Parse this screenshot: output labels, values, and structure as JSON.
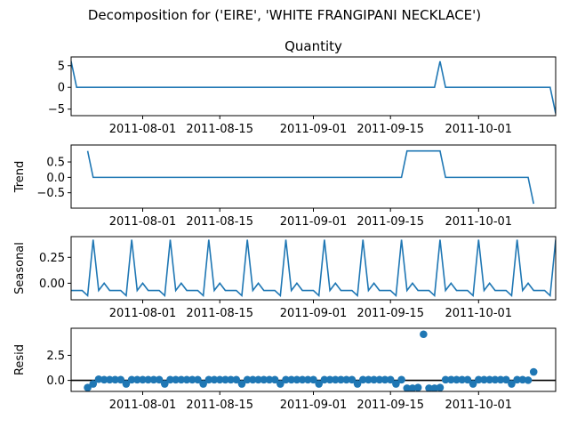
{
  "figure": {
    "suptitle": "Decomposition for ('EIRE', 'WHITE FRANGIPANI NECKLACE')",
    "series_color": "#1f77b4"
  },
  "chart_data": [
    {
      "type": "line",
      "title": "Quantity",
      "ylabel": "",
      "xlim": [
        "2011-07-19",
        "2011-10-15"
      ],
      "ylim": [
        -6.5,
        7
      ],
      "yticks": [
        5,
        0,
        -5
      ],
      "xticks": [
        "2011-08-01",
        "2011-08-15",
        "2011-09-01",
        "2011-09-15",
        "2011-10-01"
      ],
      "points": [
        [
          "2011-07-19",
          6
        ],
        [
          "2011-07-20",
          0
        ],
        [
          "2011-09-23",
          0
        ],
        [
          "2011-09-24",
          6
        ],
        [
          "2011-09-25",
          0
        ],
        [
          "2011-10-14",
          0
        ],
        [
          "2011-10-15",
          -6
        ]
      ]
    },
    {
      "type": "line",
      "title": "",
      "ylabel": "Trend",
      "xlim": [
        "2011-07-19",
        "2011-10-15"
      ],
      "ylim": [
        -1.0,
        1.05
      ],
      "yticks": [
        0.5,
        0.0,
        -0.5
      ],
      "xticks": [
        "2011-08-01",
        "2011-08-15",
        "2011-09-01",
        "2011-09-15",
        "2011-10-01"
      ],
      "points": [
        [
          "2011-07-22",
          0.857
        ],
        [
          "2011-07-23",
          0
        ],
        [
          "2011-09-17",
          0
        ],
        [
          "2011-09-18",
          0.857
        ],
        [
          "2011-09-24",
          0.857
        ],
        [
          "2011-09-25",
          0
        ],
        [
          "2011-10-10",
          0
        ],
        [
          "2011-10-11",
          -0.857
        ]
      ]
    },
    {
      "type": "line",
      "title": "",
      "ylabel": "Seasonal",
      "xlim": [
        "2011-07-19",
        "2011-10-15"
      ],
      "ylim": [
        -0.16,
        0.45
      ],
      "yticks": [
        0.25,
        0.0
      ],
      "xticks": [
        "2011-08-01",
        "2011-08-15",
        "2011-09-01",
        "2011-09-15",
        "2011-10-01"
      ],
      "weekly_pattern": [
        0.42,
        -0.07,
        0.0,
        -0.07,
        -0.07,
        -0.07,
        -0.12
      ],
      "pattern_start": "2011-07-23",
      "lead_points": [
        [
          "2011-07-19",
          -0.07
        ],
        [
          "2011-07-20",
          -0.07
        ],
        [
          "2011-07-21",
          -0.07
        ],
        [
          "2011-07-22",
          -0.12
        ]
      ]
    },
    {
      "type": "scatter",
      "title": "",
      "ylabel": "Resid",
      "xlim": [
        "2011-07-19",
        "2011-10-15"
      ],
      "ylim": [
        -1.1,
        5.2
      ],
      "yticks": [
        2.5,
        0.0
      ],
      "xticks": [
        "2011-08-01",
        "2011-08-15",
        "2011-09-01",
        "2011-09-15",
        "2011-10-01"
      ],
      "baseline": 0,
      "range_start": "2011-07-22",
      "range_end": "2011-10-11",
      "default_value": 0.07,
      "overrides": {
        "2011-07-22": -0.72,
        "2011-07-23": -0.35,
        "2011-07-24": 0.12,
        "2011-07-29": -0.35,
        "2011-08-05": -0.35,
        "2011-08-12": -0.35,
        "2011-08-19": -0.35,
        "2011-08-26": -0.35,
        "2011-09-02": -0.35,
        "2011-09-09": -0.35,
        "2011-09-16": -0.35,
        "2011-09-18": -0.78,
        "2011-09-19": -0.78,
        "2011-09-20": -0.72,
        "2011-09-21": 4.6,
        "2011-09-22": -0.78,
        "2011-09-23": -0.78,
        "2011-09-24": -0.72,
        "2011-09-30": -0.35,
        "2011-10-07": -0.35,
        "2011-10-10": 0.02,
        "2011-10-11": 0.85
      }
    }
  ]
}
